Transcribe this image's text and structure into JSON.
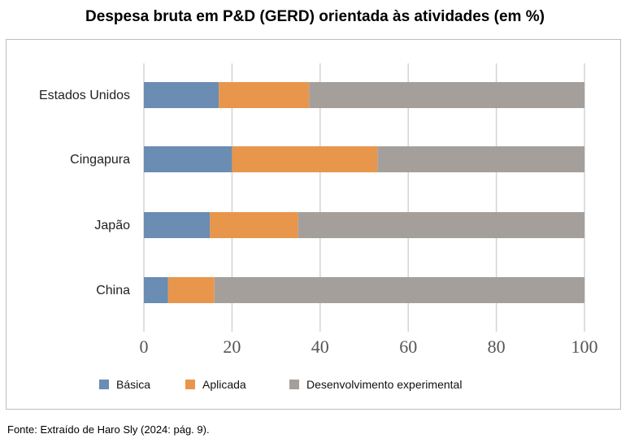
{
  "chart_data": {
    "type": "bar",
    "orientation": "horizontal",
    "stacked": true,
    "title": "Despesa bruta em P&D (GERD) orientada às atividades (em %)",
    "categories": [
      "Estados Unidos",
      "Cingapura",
      "Japão",
      "China"
    ],
    "series": [
      {
        "name": "Básica",
        "color": "#6b8cb3",
        "values": [
          17,
          20,
          15,
          5.5
        ]
      },
      {
        "name": "Aplicada",
        "color": "#e8964b",
        "values": [
          20.5,
          33,
          20,
          10.5
        ]
      },
      {
        "name": "Desenvolvimento experimental",
        "color": "#a59f9b",
        "values": [
          62.5,
          47,
          65,
          84
        ]
      }
    ],
    "xlim": [
      0,
      100
    ],
    "xticks": [
      0,
      20,
      40,
      60,
      80,
      100
    ],
    "grid": true,
    "legend_position": "bottom"
  },
  "source": "Fonte: Extraído de Haro Sly (2024: pág. 9)."
}
